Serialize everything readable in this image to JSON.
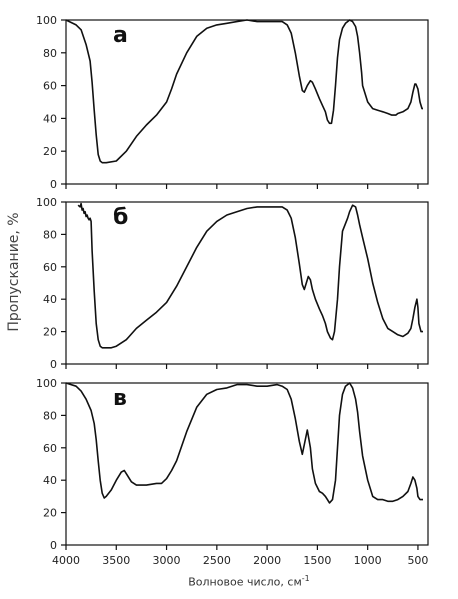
{
  "ylabel": "Пропускание, %",
  "xlabel": "Волновое число, см",
  "xlabel_sup": "-1",
  "chart_data": [
    {
      "type": "line",
      "panel_label": "а",
      "xlabel": "Волновое число, см-1",
      "ylabel": "Пропускание, %",
      "xlim": [
        4000,
        400
      ],
      "ylim": [
        0,
        100
      ],
      "xticks": [
        4000,
        3500,
        3000,
        2500,
        2000,
        1500,
        1000,
        500
      ],
      "yticks": [
        0,
        20,
        40,
        60,
        80,
        100
      ],
      "grid": false,
      "series": [
        {
          "x": [
            4000,
            3900,
            3850,
            3800,
            3760,
            3740,
            3720,
            3700,
            3680,
            3660,
            3640,
            3600,
            3500,
            3400,
            3300,
            3200,
            3100,
            3000,
            2950,
            2900,
            2800,
            2700,
            2600,
            2500,
            2400,
            2300,
            2200,
            2100,
            2000,
            1900,
            1850,
            1800,
            1760,
            1720,
            1680,
            1650,
            1630,
            1600,
            1570,
            1550,
            1520,
            1480,
            1450,
            1420,
            1400,
            1380,
            1360,
            1340,
            1320,
            1300,
            1280,
            1250,
            1220,
            1200,
            1180,
            1150,
            1120,
            1100,
            1080,
            1060,
            1050,
            1000,
            950,
            900,
            850,
            800,
            760,
            720,
            700,
            650,
            600,
            570,
            550,
            530,
            520,
            500,
            480,
            460,
            450
          ],
          "y": [
            100,
            97,
            94,
            85,
            75,
            62,
            45,
            30,
            18,
            14,
            13,
            13,
            14,
            20,
            29,
            36,
            42,
            50,
            58,
            67,
            80,
            90,
            95,
            97,
            98,
            99,
            100,
            99,
            99,
            99,
            99,
            97,
            92,
            80,
            66,
            57,
            56,
            60,
            63,
            62,
            58,
            52,
            48,
            44,
            39,
            37,
            37,
            45,
            60,
            77,
            88,
            95,
            98,
            99,
            100,
            99,
            96,
            90,
            80,
            68,
            60,
            50,
            46,
            45,
            44,
            43,
            42,
            42,
            43,
            44,
            46,
            50,
            56,
            61,
            61,
            58,
            50,
            46,
            46
          ]
        }
      ]
    },
    {
      "type": "line",
      "panel_label": "б",
      "xlabel": "Волновое число, см-1",
      "ylabel": "Пропускание, %",
      "xlim": [
        4000,
        400
      ],
      "ylim": [
        0,
        100
      ],
      "xticks": [
        4000,
        3500,
        3000,
        2500,
        2000,
        1500,
        1000,
        500
      ],
      "yticks": [
        0,
        20,
        40,
        60,
        80,
        100
      ],
      "grid": false,
      "series": [
        {
          "x": [
            3880,
            3860,
            3850,
            3840,
            3830,
            3820,
            3810,
            3800,
            3790,
            3780,
            3770,
            3760,
            3750,
            3740,
            3720,
            3700,
            3680,
            3660,
            3640,
            3600,
            3550,
            3500,
            3400,
            3300,
            3200,
            3100,
            3000,
            2900,
            2800,
            2700,
            2600,
            2500,
            2400,
            2300,
            2200,
            2100,
            2000,
            1900,
            1850,
            1800,
            1760,
            1720,
            1680,
            1650,
            1630,
            1610,
            1590,
            1570,
            1550,
            1520,
            1480,
            1450,
            1420,
            1400,
            1370,
            1350,
            1330,
            1300,
            1280,
            1250,
            1200,
            1180,
            1150,
            1120,
            1100,
            1080,
            1050,
            1000,
            950,
            900,
            850,
            800,
            750,
            700,
            650,
            600,
            570,
            550,
            530,
            510,
            500,
            490,
            470,
            450
          ],
          "y": [
            98,
            97,
            99,
            95,
            96,
            93,
            94,
            91,
            92,
            90,
            89,
            90,
            88,
            70,
            45,
            25,
            15,
            11,
            10,
            10,
            10,
            11,
            15,
            22,
            27,
            32,
            38,
            48,
            60,
            72,
            82,
            88,
            92,
            94,
            96,
            97,
            97,
            97,
            97,
            95,
            90,
            78,
            62,
            49,
            46,
            50,
            54,
            52,
            46,
            40,
            34,
            30,
            25,
            20,
            16,
            15,
            20,
            40,
            60,
            82,
            90,
            94,
            98,
            97,
            92,
            86,
            78,
            65,
            50,
            38,
            28,
            22,
            20,
            18,
            17,
            19,
            22,
            28,
            35,
            40,
            35,
            25,
            20,
            20
          ]
        }
      ]
    },
    {
      "type": "line",
      "panel_label": "в",
      "xlabel": "Волновое число, см-1",
      "ylabel": "Пропускание, %",
      "xlim": [
        4000,
        400
      ],
      "ylim": [
        0,
        100
      ],
      "xticks": [
        4000,
        3500,
        3000,
        2500,
        2000,
        1500,
        1000,
        500
      ],
      "yticks": [
        0,
        20,
        40,
        60,
        80,
        100
      ],
      "grid": false,
      "series": [
        {
          "x": [
            4000,
            3900,
            3850,
            3800,
            3750,
            3720,
            3700,
            3680,
            3660,
            3640,
            3620,
            3600,
            3550,
            3500,
            3450,
            3420,
            3400,
            3350,
            3300,
            3200,
            3100,
            3050,
            3000,
            2950,
            2900,
            2800,
            2700,
            2600,
            2500,
            2400,
            2300,
            2200,
            2100,
            2000,
            1900,
            1850,
            1800,
            1760,
            1720,
            1680,
            1650,
            1630,
            1600,
            1570,
            1550,
            1520,
            1480,
            1450,
            1420,
            1400,
            1380,
            1350,
            1320,
            1300,
            1280,
            1250,
            1220,
            1200,
            1180,
            1150,
            1120,
            1100,
            1080,
            1050,
            1000,
            950,
            900,
            850,
            800,
            750,
            700,
            650,
            600,
            570,
            550,
            530,
            510,
            500,
            480,
            460,
            450
          ],
          "y": [
            100,
            98,
            95,
            90,
            83,
            75,
            65,
            52,
            40,
            32,
            29,
            30,
            34,
            40,
            45,
            46,
            44,
            39,
            37,
            37,
            38,
            38,
            41,
            46,
            52,
            70,
            85,
            93,
            96,
            97,
            99,
            99,
            98,
            98,
            99,
            98,
            96,
            90,
            78,
            64,
            56,
            62,
            71,
            60,
            47,
            38,
            33,
            32,
            30,
            28,
            26,
            28,
            40,
            60,
            80,
            93,
            98,
            99,
            100,
            97,
            90,
            82,
            70,
            55,
            40,
            30,
            28,
            28,
            27,
            27,
            28,
            30,
            33,
            38,
            42,
            40,
            35,
            30,
            28,
            28,
            28
          ]
        }
      ]
    }
  ]
}
